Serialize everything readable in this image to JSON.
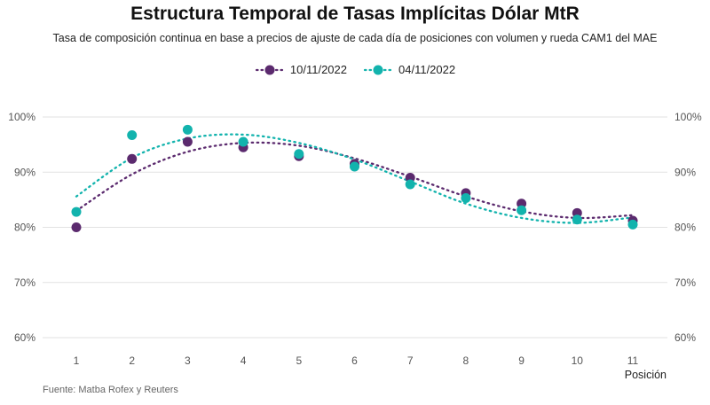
{
  "chart_data": {
    "type": "scatter",
    "title": "Estructura Temporal de Tasas Implícitas Dólar MtR",
    "subtitle": "Tasa de composición continua en base a precios de ajuste de cada día de posiciones con volumen y rueda CAM1 del MAE",
    "caption": "Fuente: Matba Rofex y Reuters",
    "xlabel": "Posición",
    "ylabel": "",
    "x": [
      1,
      2,
      3,
      4,
      5,
      6,
      7,
      8,
      9,
      10,
      11
    ],
    "xlim": [
      0.8,
      11.2
    ],
    "ylim": [
      60,
      100
    ],
    "yticks": [
      60,
      70,
      80,
      90,
      100
    ],
    "ytick_labels": [
      "60%",
      "70%",
      "80%",
      "90%",
      "100%"
    ],
    "xtick_labels": [
      "1",
      "2",
      "3",
      "4",
      "5",
      "6",
      "7",
      "8",
      "9",
      "10",
      "11"
    ],
    "grid": true,
    "legend_position": "top-center",
    "series": [
      {
        "name": "10/11/2022",
        "color": "#5b2a6e",
        "values": [
          80.0,
          92.4,
          95.5,
          94.5,
          92.9,
          91.5,
          89.0,
          86.2,
          84.3,
          82.6,
          81.2
        ],
        "trend": [
          83.0,
          89.6,
          93.7,
          95.3,
          94.8,
          92.5,
          89.2,
          85.6,
          82.9,
          81.7,
          82.2
        ]
      },
      {
        "name": "04/11/2022",
        "color": "#12b3ad",
        "values": [
          82.8,
          96.7,
          97.7,
          95.5,
          93.3,
          91.0,
          87.8,
          85.3,
          83.1,
          81.4,
          80.5
        ],
        "trend": [
          85.6,
          92.6,
          96.1,
          96.8,
          95.3,
          92.3,
          88.3,
          84.3,
          81.7,
          80.8,
          81.8
        ]
      }
    ]
  }
}
